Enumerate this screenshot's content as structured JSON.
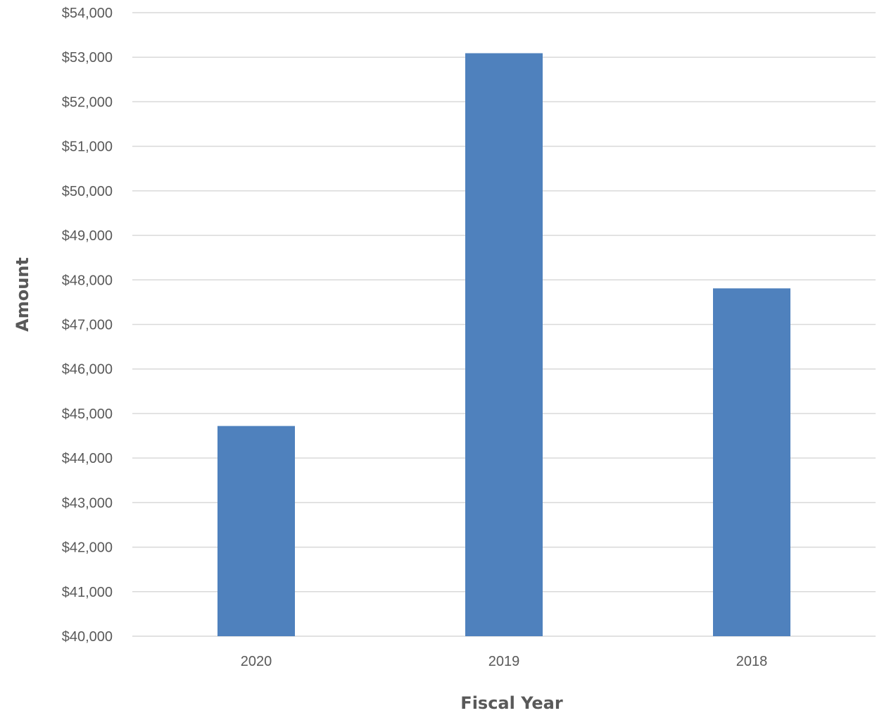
{
  "chart_data": {
    "type": "bar",
    "title": "",
    "xlabel": "Fiscal Year",
    "ylabel": "Amount",
    "categories": [
      "2020",
      "2019",
      "2018"
    ],
    "values": [
      44720,
      53090,
      47810
    ],
    "ylim": [
      40000,
      54000
    ],
    "yticks": [
      "$40,000",
      "$41,000",
      "$42,000",
      "$43,000",
      "$44,000",
      "$45,000",
      "$46,000",
      "$47,000",
      "$48,000",
      "$49,000",
      "$50,000",
      "$51,000",
      "$52,000",
      "$53,000",
      "$54,000"
    ],
    "ytick_values": [
      40000,
      41000,
      42000,
      43000,
      44000,
      45000,
      46000,
      47000,
      48000,
      49000,
      50000,
      51000,
      52000,
      53000,
      54000
    ],
    "grid": true,
    "legend": "none",
    "bar_color": "#4f81bd"
  }
}
